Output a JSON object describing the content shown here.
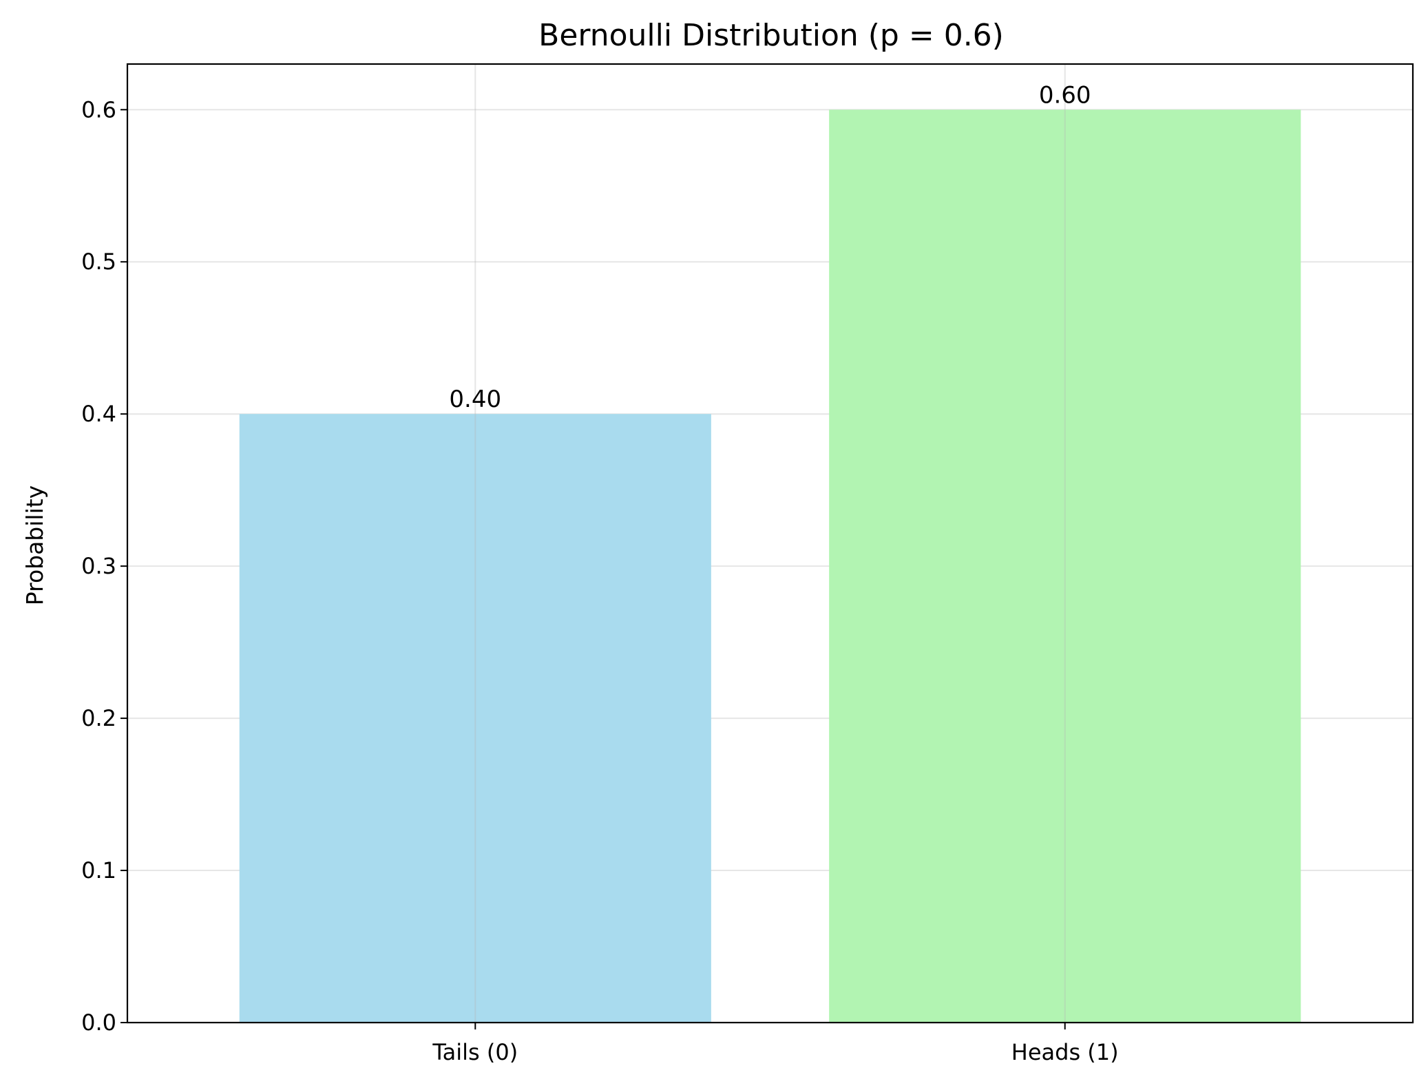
{
  "chart_data": {
    "type": "bar",
    "title": "Bernoulli Distribution (p = 0.6)",
    "xlabel": "",
    "ylabel": "Probability",
    "categories": [
      "Tails (0)",
      "Heads (1)"
    ],
    "values": [
      0.4,
      0.6
    ],
    "value_labels": [
      "0.40",
      "0.60"
    ],
    "bar_colors": [
      "#a9dbee",
      "#b2f4b2"
    ],
    "ylim": [
      0,
      0.63
    ],
    "yticks": [
      0.0,
      0.1,
      0.2,
      0.3,
      0.4,
      0.5,
      0.6
    ],
    "ytick_labels": [
      "0.0",
      "0.1",
      "0.2",
      "0.3",
      "0.4",
      "0.5",
      "0.6"
    ],
    "grid": true,
    "legend": "none"
  },
  "colors": {
    "grid": "#e6e6e6",
    "axis": "#000000"
  }
}
